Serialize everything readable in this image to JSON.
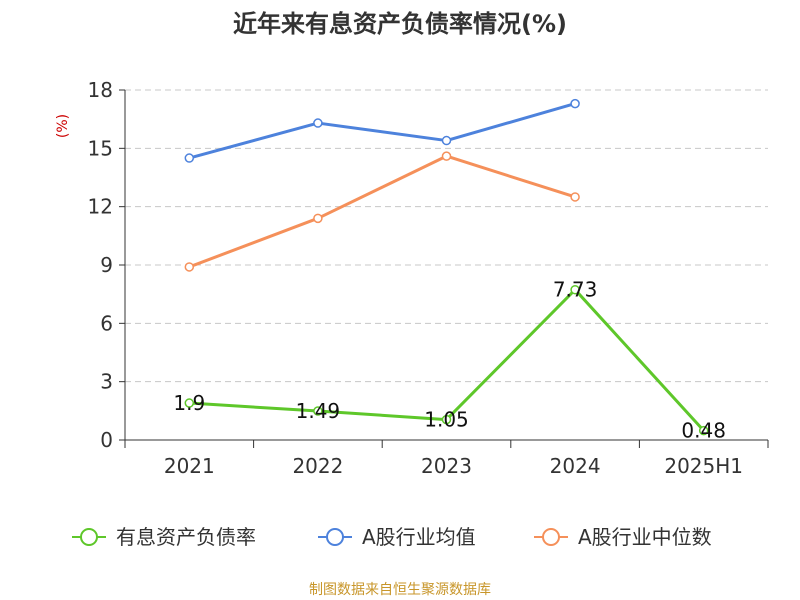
{
  "chart_data": {
    "type": "line",
    "title": "近年来有息资产负债率情况(%)",
    "ylabel": "(%)",
    "xlabel": "",
    "categories": [
      "2021",
      "2022",
      "2023",
      "2024",
      "2025H1"
    ],
    "ylim": [
      0,
      18
    ],
    "yticks": [
      0,
      3,
      6,
      9,
      12,
      15,
      18
    ],
    "grid": true,
    "legend_position": "bottom",
    "series": [
      {
        "name": "有息资产负债率",
        "values": [
          1.9,
          1.49,
          1.05,
          7.73,
          0.48
        ],
        "color": "#5ec72a",
        "show_labels": true
      },
      {
        "name": "A股行业均值",
        "values": [
          14.5,
          16.3,
          15.4,
          17.3,
          null
        ],
        "color": "#4d82dc",
        "show_labels": false
      },
      {
        "name": "A股行业中位数",
        "values": [
          8.9,
          11.4,
          14.6,
          12.5,
          null
        ],
        "color": "#f5905a",
        "show_labels": false
      }
    ],
    "data_labels": [
      "1.9",
      "1.49",
      "1.05",
      "7.73",
      "0.48"
    ]
  },
  "source": "制图数据来自恒生聚源数据库"
}
